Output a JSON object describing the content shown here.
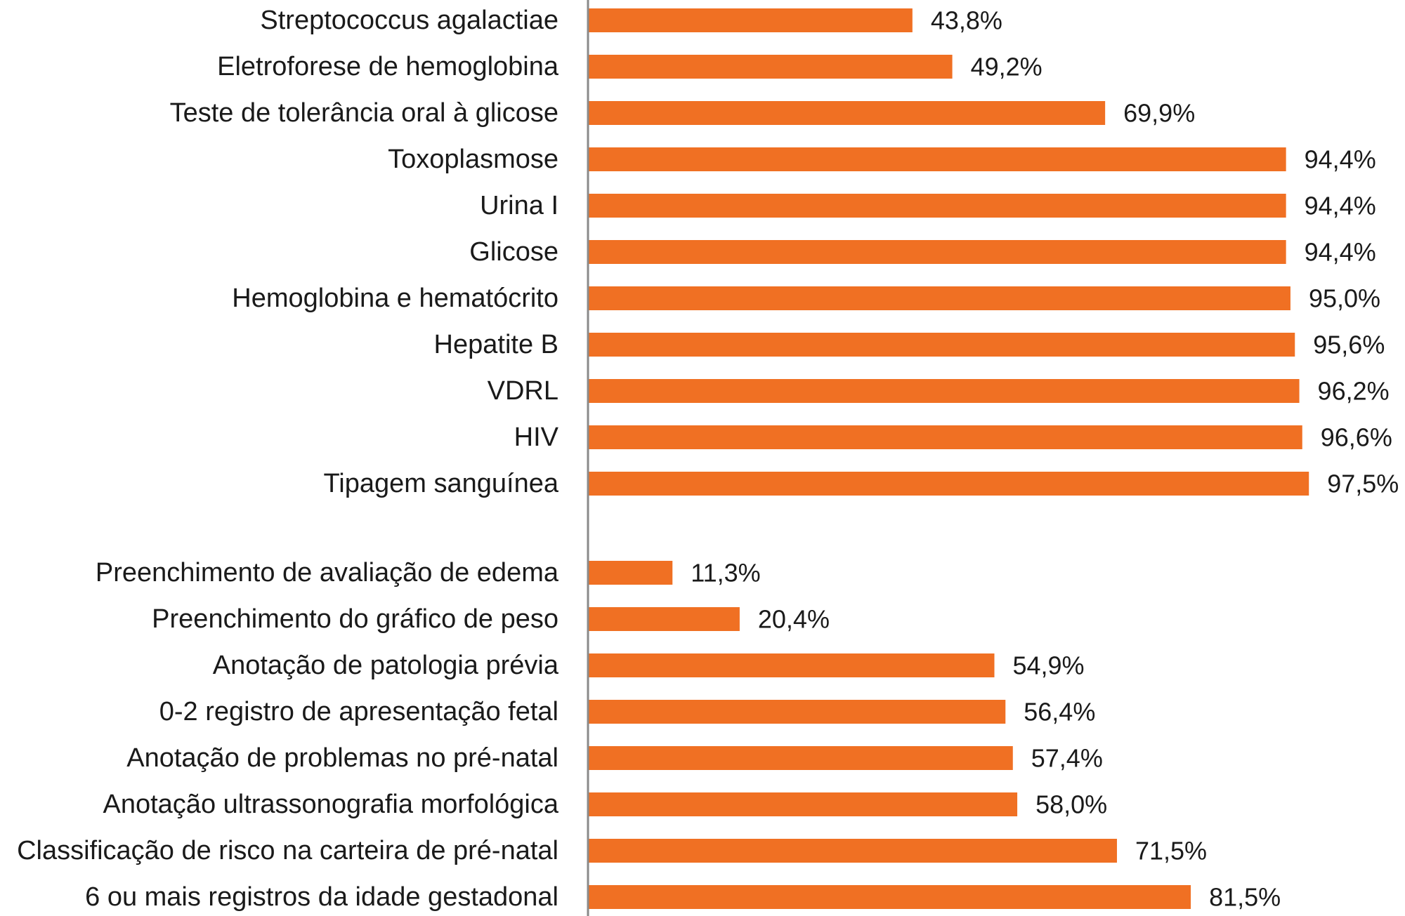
{
  "chart_data": {
    "type": "bar",
    "orientation": "horizontal",
    "title": "",
    "xlabel": "",
    "ylabel": "",
    "xlim": [
      0,
      100
    ],
    "grid": false,
    "legend": "none",
    "bar_color": "#f07023",
    "axis_color": "#8a8a8a",
    "value_suffix": "%",
    "groups": [
      {
        "categories": [
          "Streptococcus agalactiae",
          "Eletroforese de hemoglobina",
          "Teste de tolerância oral à glicose",
          "Toxoplasmose",
          "Urina I",
          "Glicose",
          "Hemoglobina e hematócrito",
          "Hepatite B",
          "VDRL",
          "HIV",
          "Tipagem sanguínea"
        ],
        "values": [
          43.8,
          49.2,
          69.9,
          94.4,
          94.4,
          94.4,
          95.0,
          95.6,
          96.2,
          96.6,
          97.5
        ],
        "value_labels": [
          "43,8%",
          "49,2%",
          "69,9%",
          "94,4%",
          "94,4%",
          "94,4%",
          "95,0%",
          "95,6%",
          "96,2%",
          "96,6%",
          "97,5%"
        ]
      },
      {
        "categories": [
          "Preenchimento de avaliação de edema",
          "Preenchimento do gráfico de peso",
          "Anotação de patologia prévia",
          "0-2 registro de apresentação fetal",
          "Anotação de problemas no pré-natal",
          "Anotação ultrassonografia morfológica",
          "Classificação de risco na carteira de pré-natal",
          "6 ou mais registros da idade gestadonal"
        ],
        "values": [
          11.3,
          20.4,
          54.9,
          56.4,
          57.4,
          58.0,
          71.5,
          81.5
        ],
        "value_labels": [
          "11,3%",
          "20,4%",
          "54,9%",
          "56,4%",
          "57,4%",
          "58,0%",
          "71,5%",
          "81,5%"
        ]
      }
    ]
  }
}
